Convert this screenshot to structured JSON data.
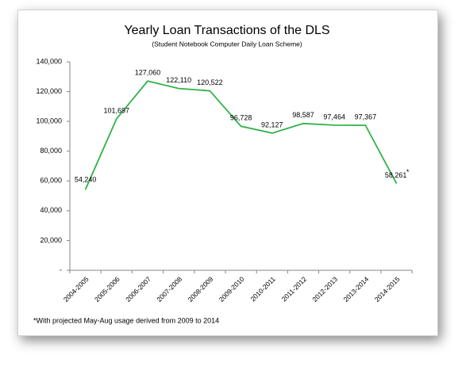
{
  "chart_data": {
    "type": "line",
    "title": "Yearly Loan Transactions of the DLS",
    "subtitle": "(Student Notebook Computer Daily Loan Scheme)",
    "categories": [
      "2004-2005",
      "2005-2006",
      "2006-2007",
      "2007-2008",
      "2008-2009",
      "2009-2010",
      "2010-2011",
      "2011-2012",
      "2012-2013",
      "2013-2014",
      "2014-2015"
    ],
    "series": [
      {
        "color": "#2fb34a",
        "values": [
          54240,
          101697,
          127060,
          122110,
          120522,
          96728,
          92127,
          98587,
          97464,
          97367,
          58261
        ],
        "value_labels": [
          "54,240",
          "101,697",
          "127,060",
          "122,110",
          "120,522",
          "96,728",
          "92,127",
          "98,587",
          "97,464",
          "97,367",
          "58,261"
        ]
      }
    ],
    "ylim": [
      0,
      140000
    ],
    "yticks": [
      {
        "value": 0,
        "label": "-"
      },
      {
        "value": 20000,
        "label": "20,000"
      },
      {
        "value": 40000,
        "label": "40,000"
      },
      {
        "value": 60000,
        "label": "60,000"
      },
      {
        "value": 80000,
        "label": "80,000"
      },
      {
        "value": 100000,
        "label": "100,000"
      },
      {
        "value": 120000,
        "label": "120,000"
      },
      {
        "value": 140000,
        "label": "140,000"
      }
    ],
    "grid": false,
    "annotation": "*",
    "footnote": "*With projected May-Aug usage derived from 2009 to 2014"
  }
}
